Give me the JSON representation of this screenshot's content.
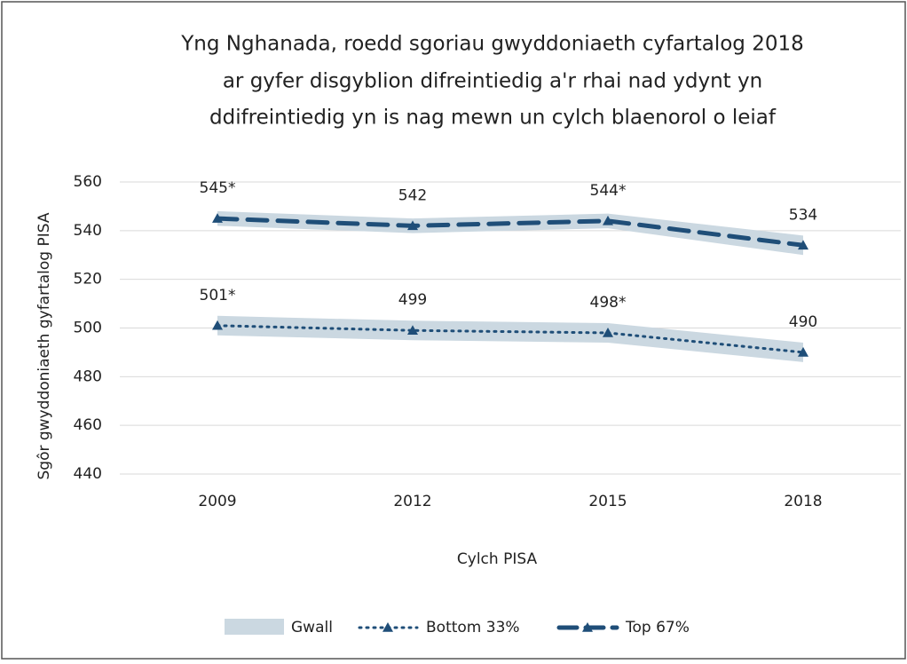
{
  "chart_data": {
    "type": "line",
    "title": [
      "Yng Nghanada, roedd sgoriau gwyddoniaeth cyfartalog 2018",
      "ar gyfer disgyblion difreintiedig a'r rhai nad ydynt yn",
      "ddifreintiedig yn is nag mewn un cylch blaenorol o leiaf"
    ],
    "y_label": "Sgôr gwyddoniaeth gyfartalog PISA",
    "x_label": "Cylch PISA",
    "categories": [
      "2009",
      "2012",
      "2015",
      "2018"
    ],
    "band": {
      "name": "Gwall",
      "color": "#cbd8e1"
    },
    "series": [
      {
        "name": "Bottom 33%",
        "color": "#1f4e78",
        "dash": "dotted",
        "values": [
          501,
          499,
          498,
          490
        ],
        "errors": [
          4,
          4,
          4,
          4
        ],
        "value_labels": [
          "501*",
          "499",
          "498*",
          "490"
        ]
      },
      {
        "name": "Top 67%",
        "color": "#1f4e78",
        "dash": "dashed",
        "values": [
          545,
          542,
          544,
          534
        ],
        "errors": [
          3,
          3,
          3,
          4
        ],
        "value_labels": [
          "545*",
          "542",
          "544*",
          "534"
        ]
      }
    ],
    "ylim": [
      440,
      560
    ],
    "yticks": [
      440,
      460,
      480,
      500,
      520,
      540,
      560
    ],
    "grid": true
  }
}
